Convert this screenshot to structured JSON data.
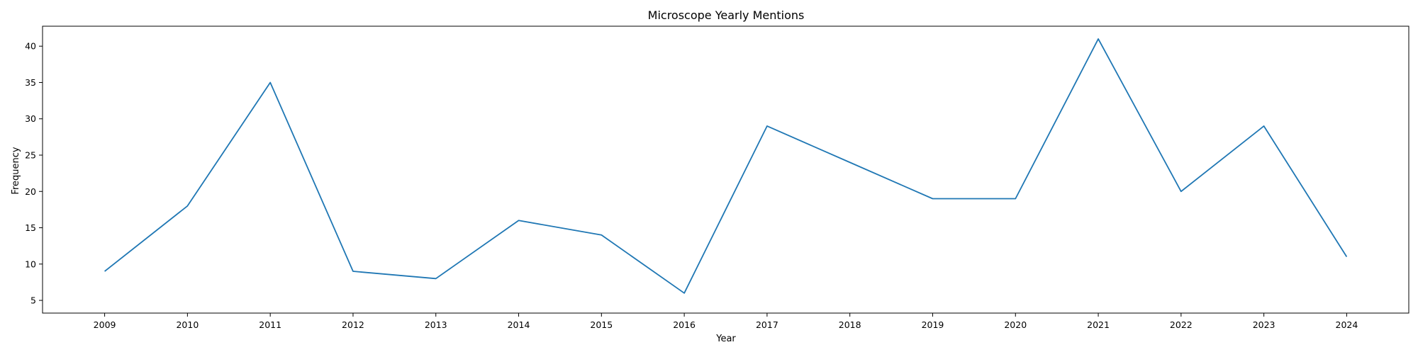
{
  "chart_data": {
    "type": "line",
    "title": "Microscope Yearly Mentions",
    "xlabel": "Year",
    "ylabel": "Frequency",
    "x": [
      2009,
      2010,
      2011,
      2012,
      2013,
      2014,
      2015,
      2016,
      2017,
      2018,
      2019,
      2020,
      2021,
      2022,
      2023,
      2024
    ],
    "series": [
      {
        "values": [
          9,
          18,
          35,
          9,
          8,
          16,
          14,
          6,
          29,
          24,
          19,
          19,
          41,
          20,
          29,
          11
        ],
        "color": "#1f77b4"
      }
    ],
    "xticks": [
      "2009",
      "2010",
      "2011",
      "2012",
      "2013",
      "2014",
      "2015",
      "2016",
      "2017",
      "2018",
      "2019",
      "2020",
      "2021",
      "2022",
      "2023",
      "2024"
    ],
    "yticks": [
      "5",
      "10",
      "15",
      "20",
      "25",
      "30",
      "35",
      "40"
    ],
    "xlim": [
      2008.25,
      2024.75
    ],
    "ylim": [
      3.25,
      42.75
    ],
    "grid": false,
    "legend": "none"
  }
}
